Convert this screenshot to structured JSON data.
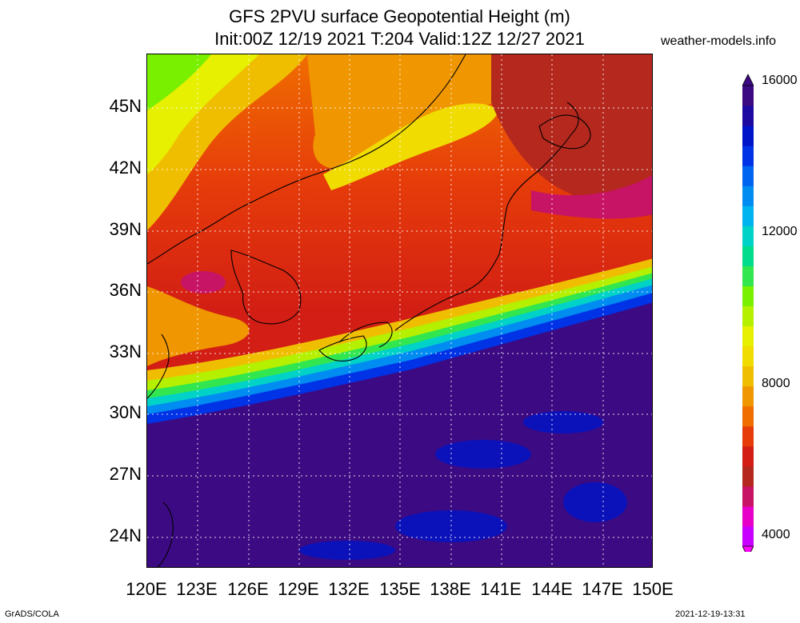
{
  "title_line1": "GFS 2PVU surface Geopotential Height (m)",
  "title_line2": "Init:00Z 12/19 2021 T:204 Valid:12Z 12/27 2021",
  "site": "weather-models.info",
  "lat_labels": [
    "45N",
    "42N",
    "39N",
    "36N",
    "33N",
    "30N",
    "27N",
    "24N"
  ],
  "lon_labels": [
    "120E",
    "123E",
    "126E",
    "129E",
    "132E",
    "135E",
    "138E",
    "141E",
    "144E",
    "147E",
    "150E"
  ],
  "colorbar": {
    "labels": [
      "16000",
      "12000",
      "8000",
      "4000"
    ],
    "colors": [
      "#c800ff",
      "#e600c8",
      "#c81464",
      "#b4281e",
      "#d21e14",
      "#e63c0a",
      "#f06e00",
      "#f09600",
      "#f0be00",
      "#f0dc00",
      "#e6f000",
      "#b4f000",
      "#78f000",
      "#32e650",
      "#00dc8c",
      "#00d2c8",
      "#00b4f0",
      "#008cf0",
      "#0064f0",
      "#0032e6",
      "#0014c8",
      "#1e0aa0",
      "#3c0a82"
    ]
  },
  "footer_left": "GrADS/COLA",
  "footer_right": "2021-12-19-13:31"
}
